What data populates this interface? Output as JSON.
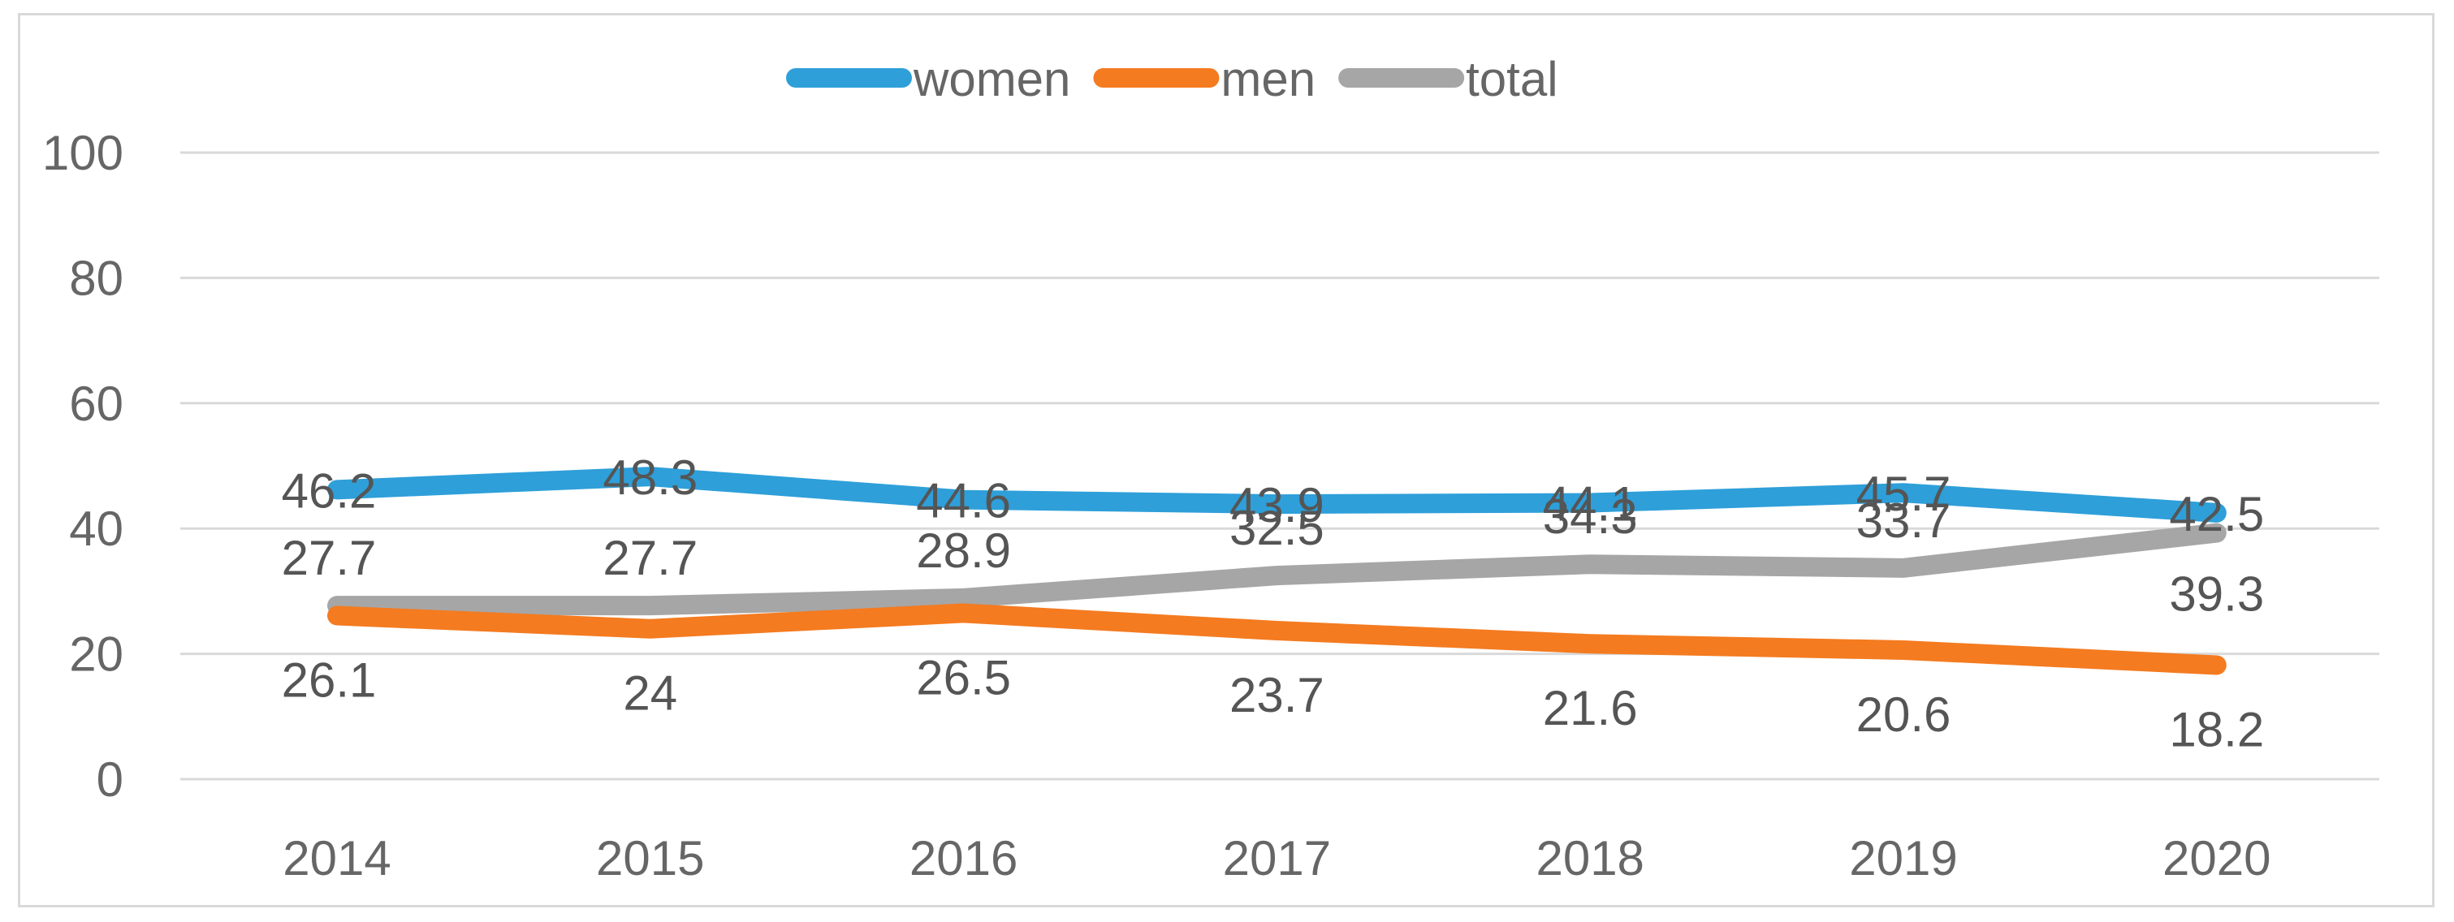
{
  "chart_data": {
    "type": "line",
    "title": "",
    "xlabel": "",
    "ylabel": "",
    "categories": [
      "2014",
      "2015",
      "2016",
      "2017",
      "2018",
      "2019",
      "2020"
    ],
    "ylim": [
      0,
      100
    ],
    "yticks": [
      0,
      20,
      40,
      60,
      80,
      100
    ],
    "grid": true,
    "legend_position": "top-center",
    "series": [
      {
        "name": "women",
        "color": "#2E9FD9",
        "values": [
          46.2,
          48.3,
          44.6,
          43.9,
          44.1,
          45.7,
          42.5
        ],
        "labels": [
          "46.2",
          "48.3",
          "44.6",
          "43.9",
          "44.1",
          "45.7",
          "42.5"
        ]
      },
      {
        "name": "men",
        "color": "#F47B20",
        "values": [
          26.1,
          24,
          26.5,
          23.7,
          21.6,
          20.6,
          18.2
        ],
        "labels": [
          "26.1",
          "24",
          "26.5",
          "23.7",
          "21.6",
          "20.6",
          "18.2"
        ]
      },
      {
        "name": "total",
        "color": "#A6A6A6",
        "values": [
          27.7,
          27.7,
          28.9,
          32.5,
          34.3,
          33.7,
          39.3
        ],
        "labels": [
          "27.7",
          "27.7",
          "28.9",
          "32.5",
          "34.3",
          "33.7",
          "39.3"
        ]
      }
    ]
  }
}
